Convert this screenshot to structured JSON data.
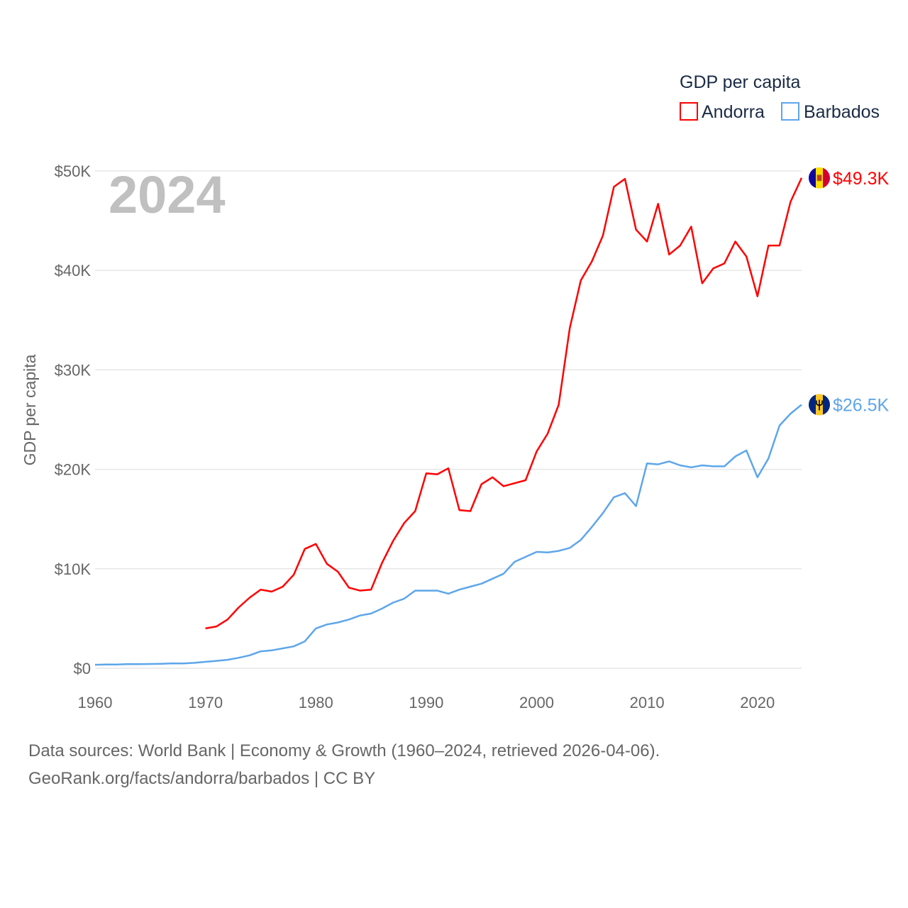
{
  "chart_data": {
    "type": "line",
    "title": "GDP per capita",
    "year_label": "2024",
    "xlabel": "",
    "ylabel": "GDP per capita",
    "xlim": [
      1960,
      2024
    ],
    "ylim": [
      0,
      50000
    ],
    "x_ticks": [
      1960,
      1970,
      1980,
      1990,
      2000,
      2010,
      2020
    ],
    "y_ticks": [
      {
        "value": 0,
        "label": "$0"
      },
      {
        "value": 10000,
        "label": "$10K"
      },
      {
        "value": 20000,
        "label": "$20K"
      },
      {
        "value": 30000,
        "label": "$30K"
      },
      {
        "value": 40000,
        "label": "$40K"
      },
      {
        "value": 50000,
        "label": "$50K"
      }
    ],
    "grid": true,
    "legend_position": "top-right",
    "series": [
      {
        "name": "Andorra",
        "color": "#ff0000",
        "end_label": "$49.3K",
        "flag": "andorra-flag",
        "start_year": 1970,
        "values": [
          4000,
          4200,
          4900,
          6100,
          7100,
          7900,
          7700,
          8200,
          9400,
          12000,
          12500,
          10500,
          9700,
          8100,
          7800,
          7900,
          10600,
          12800,
          14600,
          15800,
          19600,
          19500,
          20100,
          15900,
          15800,
          18500,
          19200,
          18300,
          18600,
          18900,
          21800,
          23600,
          26500,
          34200,
          39000,
          40900,
          43500,
          48400,
          49200,
          44100,
          42900,
          46700,
          41600,
          42500,
          44400,
          38700,
          40200,
          40700,
          42900,
          41400,
          37400,
          42500,
          42500,
          46900,
          49300
        ]
      },
      {
        "name": "Barbados",
        "color": "#5ea6ea",
        "end_label": "$26.5K",
        "flag": "barbados-flag",
        "start_year": 1960,
        "values": [
          350,
          370,
          380,
          420,
          410,
          430,
          450,
          490,
          480,
          540,
          640,
          740,
          850,
          1050,
          1300,
          1700,
          1800,
          2000,
          2200,
          2700,
          4000,
          4400,
          4600,
          4900,
          5300,
          5500,
          6000,
          6600,
          7000,
          7800,
          7800,
          7800,
          7500,
          7900,
          8200,
          8500,
          9000,
          9500,
          10700,
          11200,
          11700,
          11650,
          11800,
          12100,
          12900,
          14200,
          15600,
          17200,
          17600,
          16300,
          20600,
          20500,
          20800,
          20400,
          20200,
          20400,
          20300,
          20300,
          21300,
          21900,
          19200,
          21100,
          24400,
          25600,
          26500
        ]
      }
    ]
  },
  "footer": {
    "line1": "Data sources: World Bank | Economy & Growth (1960–2024, retrieved 2026-04-06).",
    "line2": "GeoRank.org/facts/andorra/barbados | CC BY"
  }
}
